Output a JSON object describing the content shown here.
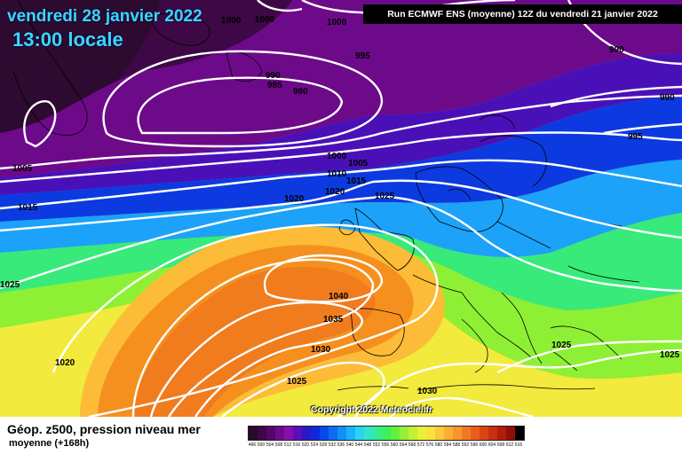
{
  "header": {
    "date": "vendredi 28 janvier 2022",
    "time": "13:00 locale",
    "run": "Run ECMWF ENS (moyenne) 12Z du vendredi 21 janvier 2022"
  },
  "footer": {
    "parameter": "Géop. z500, pression niveau mer",
    "mean": "moyenne   (+168h)",
    "copyright": "Copyright 2022 Meteociel.fr"
  },
  "scale": {
    "ticks": [
      "496",
      "500",
      "504",
      "508",
      "512",
      "516",
      "520",
      "524",
      "528",
      "532",
      "536",
      "540",
      "544",
      "548",
      "552",
      "556",
      "560",
      "564",
      "568",
      "572",
      "576",
      "580",
      "584",
      "588",
      "592",
      "596",
      "600",
      "604",
      "608",
      "612",
      "616"
    ],
    "colors": [
      "#2a0a2c",
      "#3d0845",
      "#55066a",
      "#6d0a8a",
      "#8a0eaa",
      "#5a10b8",
      "#2a18c8",
      "#1028d8",
      "#0848e8",
      "#0a6cf2",
      "#1090f8",
      "#1cb2fa",
      "#28d4f2",
      "#30e6c8",
      "#34ec92",
      "#3cf05a",
      "#64f03a",
      "#94f034",
      "#c2f034",
      "#e8f038",
      "#fae040",
      "#fcc83c",
      "#fcae34",
      "#fc942c",
      "#f47824",
      "#ea5e1c",
      "#dc4414",
      "#c82e10",
      "#b01c0c",
      "#901008",
      "#000000"
    ]
  },
  "isobar_labels": [
    {
      "text": "1000"
    },
    {
      "text": "1000"
    },
    {
      "text": "1000"
    },
    {
      "text": "995"
    },
    {
      "text": "990"
    },
    {
      "text": "985"
    },
    {
      "text": "980"
    },
    {
      "text": "990"
    },
    {
      "text": "990"
    },
    {
      "text": "995"
    },
    {
      "text": "1005"
    },
    {
      "text": "1000"
    },
    {
      "text": "1005"
    },
    {
      "text": "1010"
    },
    {
      "text": "1015"
    },
    {
      "text": "1015"
    },
    {
      "text": "1020"
    },
    {
      "text": "1020"
    },
    {
      "text": "1025"
    },
    {
      "text": "1025"
    },
    {
      "text": "1040"
    },
    {
      "text": "1035"
    },
    {
      "text": "1030"
    },
    {
      "text": "1025"
    },
    {
      "text": "1030"
    },
    {
      "text": "1020"
    },
    {
      "text": "1025"
    },
    {
      "text": "1025"
    }
  ],
  "colors": {
    "title": "#37d8ff",
    "isobar": "#ffffff",
    "coastline": "#000000"
  }
}
